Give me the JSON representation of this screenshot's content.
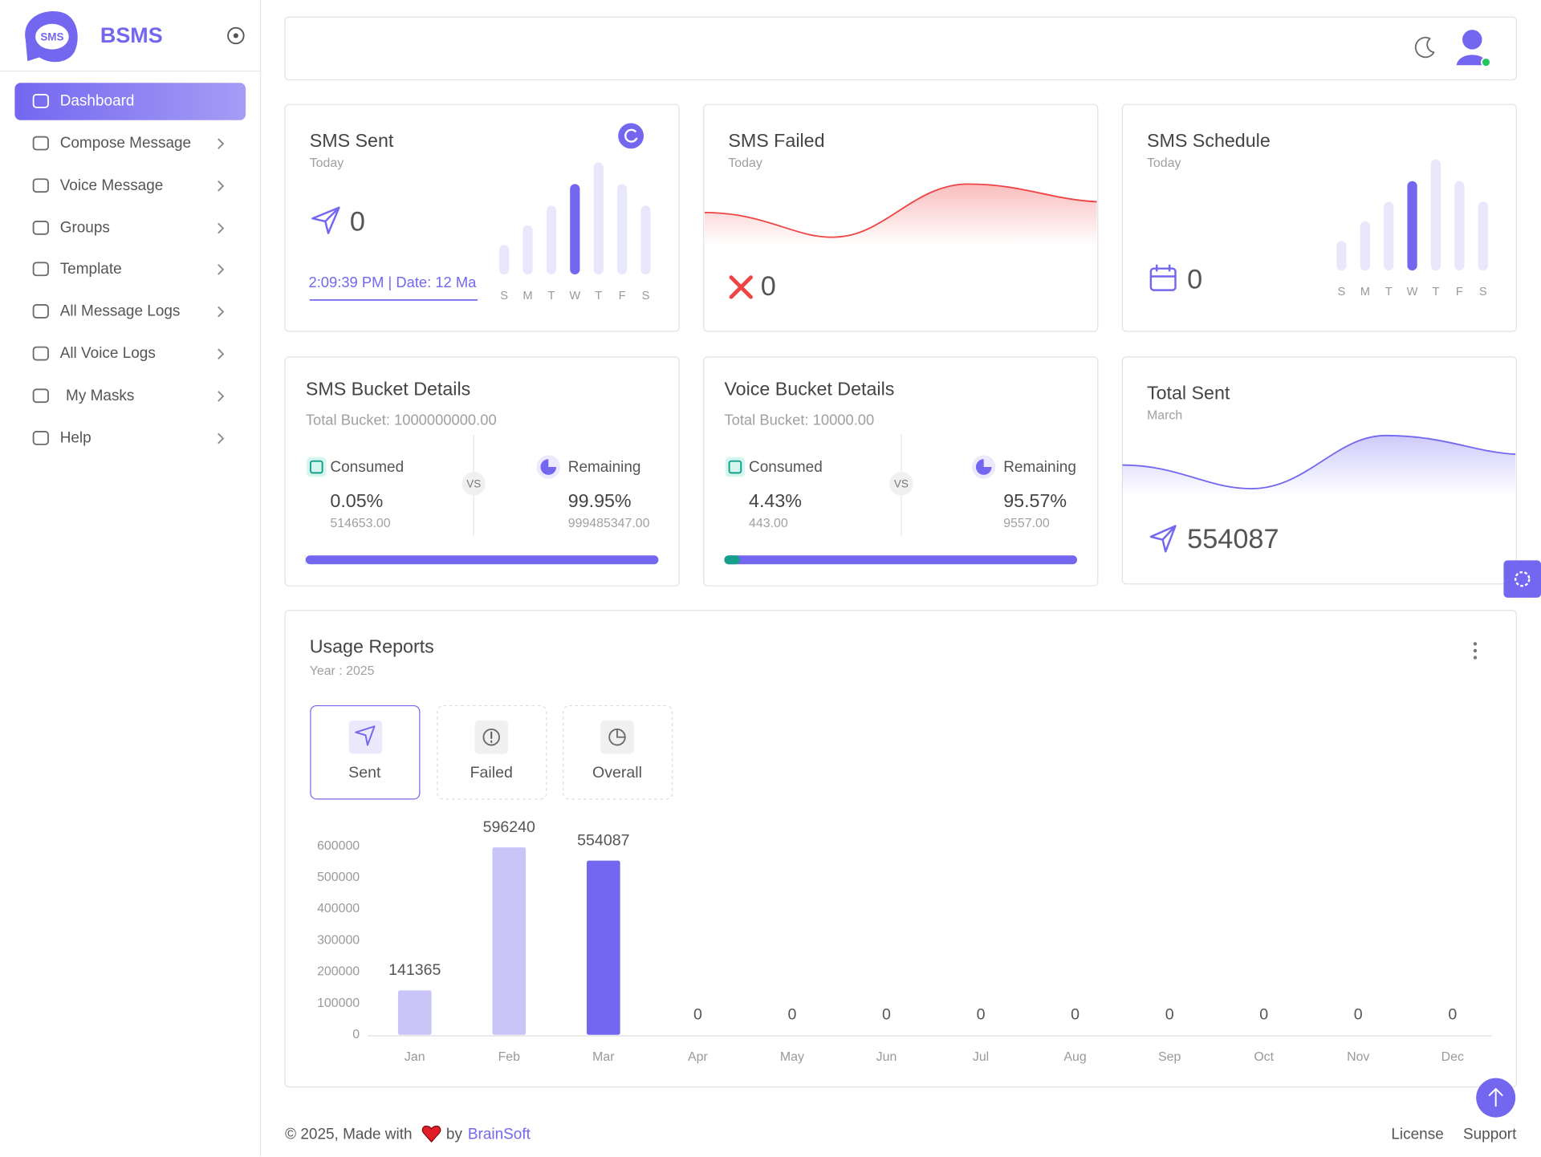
{
  "sidebar": {
    "logo": "SMS",
    "brand": "BSMS",
    "menu": [
      "Dashboard",
      "Compose Message",
      "Voice Message",
      "Groups",
      "Template",
      "All Message Logs",
      "All Voice Logs",
      "My Masks",
      "Help"
    ]
  },
  "cards": [
    {
      "title": "SMS Sent",
      "subtitle": "Today",
      "count": "0",
      "time": "2:09:39 PM | Date: 12 Ma",
      "days": [
        "S",
        "M",
        "T",
        "W",
        "T",
        "F",
        "S"
      ]
    },
    {
      "title": "SMS Failed",
      "subtitle": "Today",
      "count": "0"
    },
    {
      "title": "SMS Schedule",
      "subtitle": "Today",
      "count": "0",
      "days": [
        "S",
        "M",
        "T",
        "W",
        "T",
        "F",
        "S"
      ]
    },
    {
      "title": "Total Sent",
      "subtitle": "March",
      "count": "554087"
    }
  ],
  "buckets": [
    {
      "title": "SMS Bucket Details",
      "total": "Total Bucket: 1000000000.00",
      "vs": "VS",
      "consumed": {
        "label": "Consumed",
        "percent": "0.05%",
        "amount": "514653.00"
      },
      "remaining": {
        "label": "Remaining",
        "percent": "99.95%",
        "amount": "999485347.00"
      }
    },
    {
      "title": "Voice Bucket Details",
      "total": "Total Bucket: 10000.00",
      "vs": "VS",
      "consumed": {
        "label": "Consumed",
        "percent": "4.43%",
        "amount": "443.00"
      },
      "remaining": {
        "label": "Remaining",
        "percent": "95.57%",
        "amount": "9557.00"
      }
    }
  ],
  "usage": {
    "title": "Usage Reports",
    "subtitle": "Year : 2025",
    "tabs": [
      "Sent",
      "Failed",
      "Overall"
    ]
  },
  "chart_data": {
    "type": "bar",
    "categories": [
      "Jan",
      "Feb",
      "Mar",
      "Apr",
      "May",
      "Jun",
      "Jul",
      "Aug",
      "Sep",
      "Oct",
      "Nov",
      "Dec"
    ],
    "values": [
      141365,
      596240,
      554087,
      0,
      0,
      0,
      0,
      0,
      0,
      0,
      0,
      0
    ],
    "colors": [
      "#c9c5f6",
      "#c9c5f6",
      "#7367f0",
      "#c9c5f6",
      "#c9c5f6",
      "#c9c5f6",
      "#c9c5f6",
      "#c9c5f6",
      "#c9c5f6",
      "#c9c5f6",
      "#c9c5f6",
      "#c9c5f6"
    ],
    "ylim": [
      0,
      600000
    ],
    "yticks": [
      0,
      100000,
      200000,
      300000,
      400000,
      500000,
      600000
    ],
    "grid": false
  },
  "footer": {
    "copyright": "© 2025, Made with",
    "by": "by",
    "company": "BrainSoft",
    "links": [
      "License",
      "Support"
    ]
  }
}
